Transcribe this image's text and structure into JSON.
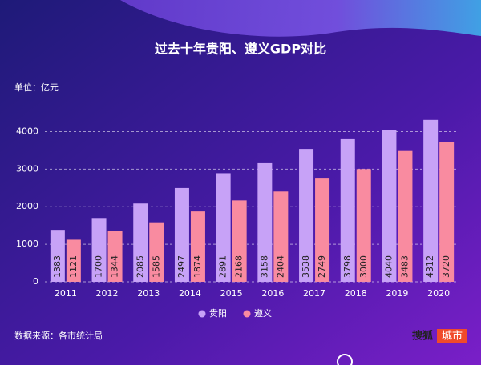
{
  "chart_data": {
    "type": "bar",
    "title": "过去十年贵阳、遵义GDP对比",
    "unit_label": "单位：亿元",
    "source": "数据来源：各市统计局",
    "watermark": {
      "text": "搜狐",
      "badge": "城市"
    },
    "categories": [
      "2011",
      "2012",
      "2013",
      "2014",
      "2015",
      "2016",
      "2017",
      "2018",
      "2019",
      "2020"
    ],
    "series": [
      {
        "name": "贵阳",
        "color": "#c7a2f7",
        "values": [
          1383,
          1700,
          2085,
          2497,
          2891,
          3158,
          3538,
          3798,
          4040,
          4312
        ]
      },
      {
        "name": "遵义",
        "color": "#f98ba0",
        "values": [
          1121,
          1344,
          1585,
          1874,
          2168,
          2404,
          2749,
          3000,
          3483,
          3720
        ]
      }
    ],
    "ylim": [
      0,
      4500
    ],
    "yticks": [
      0,
      1000,
      2000,
      3000,
      4000
    ],
    "grid": true,
    "legend": "bottom"
  }
}
